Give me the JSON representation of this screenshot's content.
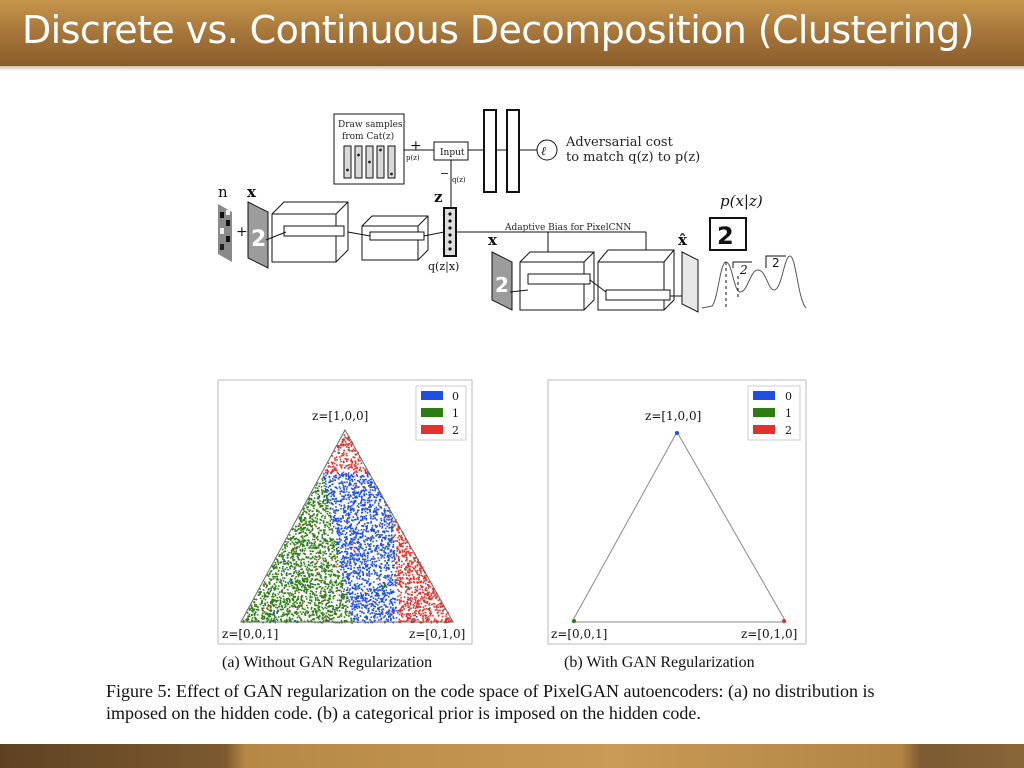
{
  "slide": {
    "title": "Discrete vs. Continuous Decomposition  (Clustering)"
  },
  "diagram": {
    "draw_samples": [
      "Draw samples",
      "from Cat(z)"
    ],
    "plus": "+",
    "minus": "−",
    "pz": "p(z)",
    "qz": "q(z)",
    "input": "Input",
    "adversarial": [
      "Adversarial cost",
      "to match q(z) to p(z)"
    ],
    "n": "n",
    "x": "x",
    "z": "z",
    "qzx": "q(z|x)",
    "adaptive_bias": "Adaptive Bias for PixelCNN",
    "xhat": "x̂",
    "pxz": "p(x|z)",
    "digit": "2"
  },
  "plot_a": {
    "legend": [
      "0",
      "1",
      "2"
    ],
    "vertices": [
      "z=[1,0,0]",
      "z=[0,0,1]",
      "z=[0,1,0]"
    ],
    "caption": "(a) Without GAN Regularization"
  },
  "plot_b": {
    "legend": [
      "0",
      "1",
      "2"
    ],
    "vertices": [
      "z=[1,0,0]",
      "z=[0,0,1]",
      "z=[0,1,0]"
    ],
    "caption": "(b) With GAN Regularization"
  },
  "colors": {
    "class0": "#1f4fe0",
    "class1": "#2e7d14",
    "class2": "#e2312c"
  },
  "figure_caption": "Figure 5:  Effect of GAN regularization on the code space of PixelGAN autoencoders: (a) no distribution is imposed on the hidden code. (b) a categorical prior is imposed on the hidden code."
}
